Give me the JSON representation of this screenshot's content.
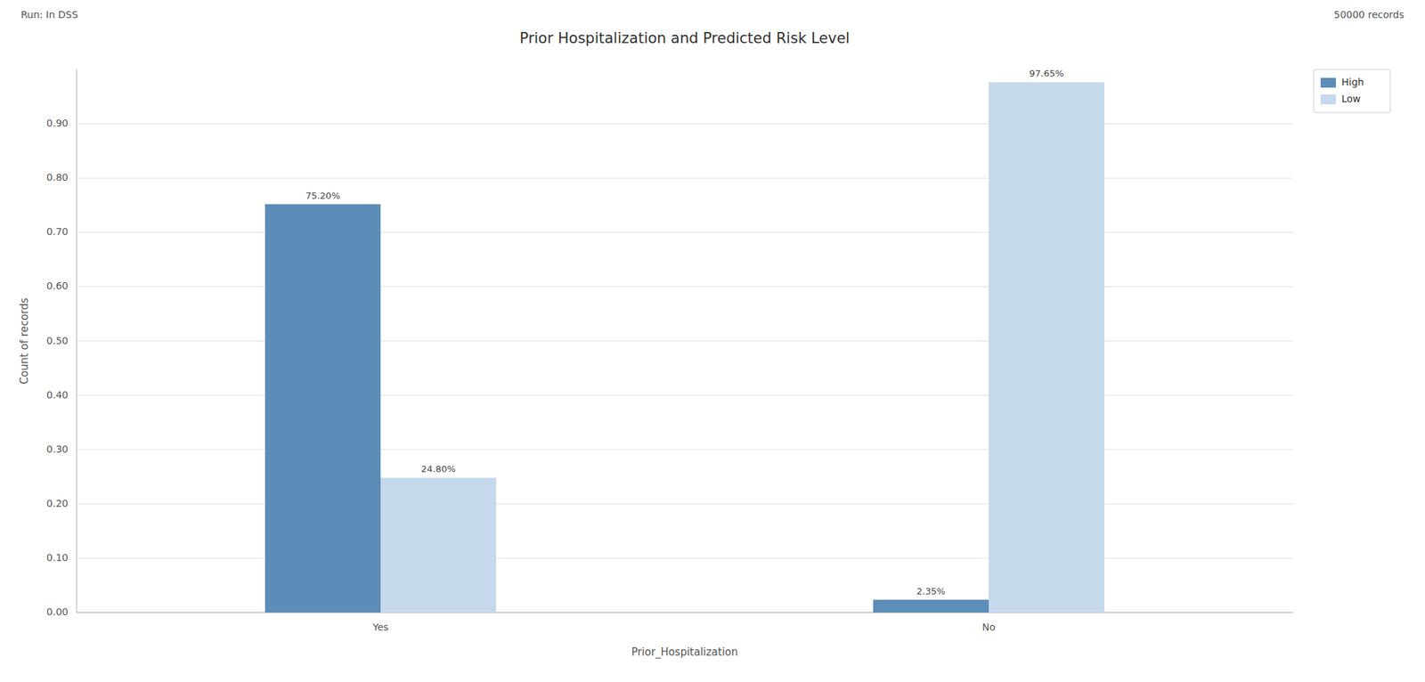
{
  "chart_data": {
    "type": "bar",
    "title": "Prior Hospitalization and Predicted Risk Level",
    "xlabel": "Prior_Hospitalization",
    "ylabel": "Count of records",
    "annotations": [
      "Run: In DSS",
      "50000 records"
    ],
    "categories": [
      "Yes",
      "No"
    ],
    "series": [
      {
        "name": "High",
        "color": "#5b8db8",
        "values": [
          0.752,
          0.0235
        ],
        "value_labels": [
          "75.20%",
          "2.35%"
        ]
      },
      {
        "name": "Low",
        "color": "#c5d8ec",
        "values": [
          0.248,
          0.9765
        ],
        "value_labels": [
          "24.80%",
          "97.65%"
        ]
      }
    ],
    "ylim": [
      0,
      1.0
    ],
    "yticks": [
      {
        "value": 0,
        "label": "0.00"
      },
      {
        "value": 0.1,
        "label": "0.10"
      },
      {
        "value": 0.2,
        "label": "0.20"
      },
      {
        "value": 0.3,
        "label": "0.30"
      },
      {
        "value": 0.4,
        "label": "0.40"
      },
      {
        "value": 0.5,
        "label": "0.50"
      },
      {
        "value": 0.6,
        "label": "0.60"
      },
      {
        "value": 0.7,
        "label": "0.70"
      },
      {
        "value": 0.8,
        "label": "0.80"
      },
      {
        "value": 0.9,
        "label": "0.90"
      }
    ],
    "grid": true,
    "legend": "upper right",
    "data_labels": true
  }
}
